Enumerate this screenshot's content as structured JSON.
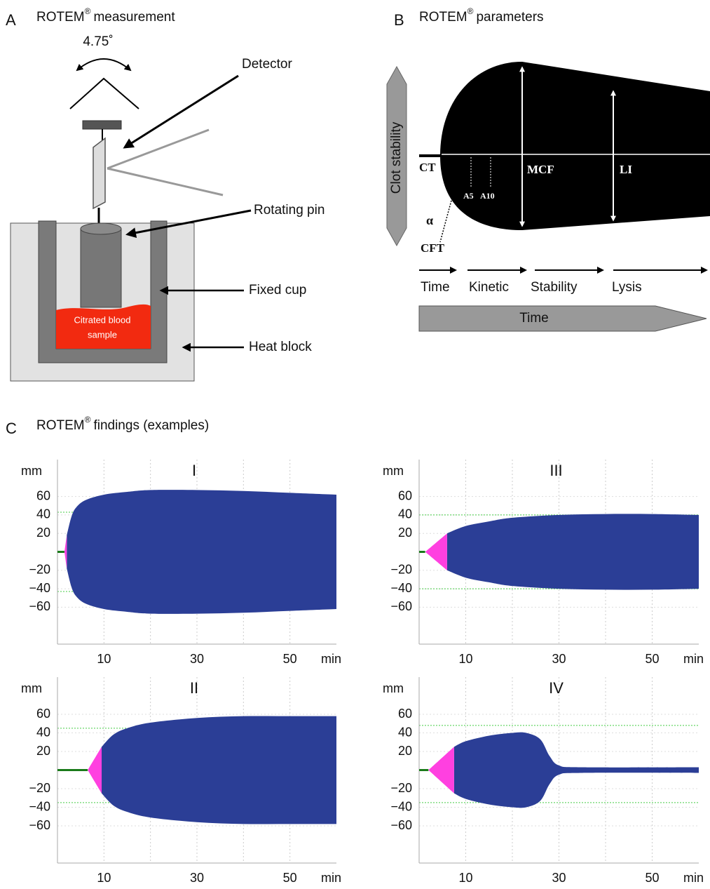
{
  "panel_a": {
    "letter": "A",
    "title_parts": [
      "ROTEM",
      "®",
      "measurement"
    ],
    "angle": "4.75˚",
    "labels": {
      "detector": "Detector",
      "rotating_pin": "Rotating pin",
      "fixed_cup": "Fixed cup",
      "heat_block": "Heat block"
    },
    "sample": [
      "Citrated blood",
      "sample"
    ]
  },
  "panel_b": {
    "letter": "B",
    "title_parts": [
      "ROTEM",
      "®",
      "parameters"
    ],
    "side_label": "Clot stability",
    "labels": {
      "ct": "CT",
      "mcf": "MCF",
      "li": "LI",
      "a5": "A5",
      "a10": "A10",
      "alpha": "α",
      "cft": "CFT"
    },
    "phases": [
      "Time",
      "Kinetic",
      "Stability",
      "Lysis"
    ],
    "time_bar": "Time"
  },
  "panel_c": {
    "letter": "C",
    "title_parts": [
      "ROTEM",
      "®",
      "findings (examples)"
    ]
  },
  "chart_data": [
    {
      "type": "area",
      "title": "I",
      "ylabel": "mm",
      "xlabel": "min",
      "xlim": [
        0,
        60
      ],
      "ylim": [
        -100,
        100
      ],
      "xticks": [
        10,
        30,
        50
      ],
      "xgrid": [
        10,
        20,
        30,
        40,
        50
      ],
      "yticks": [
        60,
        40,
        20,
        {
          "value": -20,
          "label": "−20"
        },
        {
          "value": -40,
          "label": "−40"
        },
        {
          "value": -60,
          "label": "−60"
        }
      ],
      "reference_lines": [
        43,
        -43
      ],
      "x": [
        1.5,
        2,
        3,
        4,
        6,
        10,
        15,
        20,
        30,
        40,
        50,
        60
      ],
      "values": [
        0,
        18,
        38,
        48,
        56,
        62,
        65,
        67,
        67,
        66,
        64,
        62
      ],
      "cft": 2,
      "colors": {
        "baseline": "#1a7a1a",
        "formation": "#ff40e0",
        "clot": "#2b3e96"
      }
    },
    {
      "type": "area",
      "title": "III",
      "ylabel": "mm",
      "xlabel": "min",
      "xlim": [
        0,
        60
      ],
      "ylim": [
        -100,
        100
      ],
      "xticks": [
        10,
        30,
        50
      ],
      "xgrid": [
        10,
        20,
        30,
        40,
        50
      ],
      "yticks": [
        60,
        40,
        20,
        {
          "value": -20,
          "label": "−20"
        },
        {
          "value": -40,
          "label": "−40"
        },
        {
          "value": -60,
          "label": "−60"
        }
      ],
      "reference_lines": [
        40,
        -40
      ],
      "x": [
        1.3,
        6,
        10,
        15,
        20,
        30,
        40,
        50,
        60
      ],
      "values": [
        0,
        20,
        28,
        33,
        37,
        40,
        41,
        41,
        40
      ],
      "cft": 6,
      "colors": {
        "baseline": "#1a7a1a",
        "formation": "#ff40e0",
        "clot": "#2b3e96"
      }
    },
    {
      "type": "area",
      "title": "II",
      "ylabel": "mm",
      "xlabel": "min",
      "xlim": [
        0,
        60
      ],
      "ylim": [
        -100,
        100
      ],
      "xticks": [
        10,
        30,
        50
      ],
      "xgrid": [
        10,
        20,
        30,
        40,
        50
      ],
      "yticks": [
        60,
        40,
        20,
        {
          "value": -20,
          "label": "−20"
        },
        {
          "value": -40,
          "label": "−40"
        },
        {
          "value": -60,
          "label": "−60"
        }
      ],
      "reference_lines": [
        45,
        -35
      ],
      "x": [
        6.5,
        9.5,
        12,
        15,
        20,
        30,
        40,
        50,
        60
      ],
      "values": [
        0,
        25,
        38,
        45,
        51,
        56,
        58,
        58,
        58
      ],
      "cft": 9.5,
      "colors": {
        "baseline": "#1a7a1a",
        "formation": "#ff40e0",
        "clot": "#2b3e96"
      }
    },
    {
      "type": "area",
      "title": "IV",
      "ylabel": "mm",
      "xlabel": "min",
      "xlim": [
        0,
        60
      ],
      "ylim": [
        -100,
        100
      ],
      "xticks": [
        10,
        30,
        50
      ],
      "xgrid": [
        10,
        20,
        30,
        40,
        50
      ],
      "yticks": [
        60,
        40,
        20,
        {
          "value": -20,
          "label": "−20"
        },
        {
          "value": -40,
          "label": "−40"
        },
        {
          "value": -60,
          "label": "−60"
        }
      ],
      "reference_lines": [
        48,
        -35
      ],
      "x": [
        2,
        7.5,
        10,
        15,
        20,
        23,
        26,
        28,
        30,
        35,
        60
      ],
      "values": [
        0,
        25,
        31,
        37,
        40,
        40,
        33,
        15,
        5,
        3,
        3
      ],
      "cft": 7.5,
      "colors": {
        "baseline": "#1a7a1a",
        "formation": "#ff40e0",
        "clot": "#2b3e96"
      }
    }
  ]
}
